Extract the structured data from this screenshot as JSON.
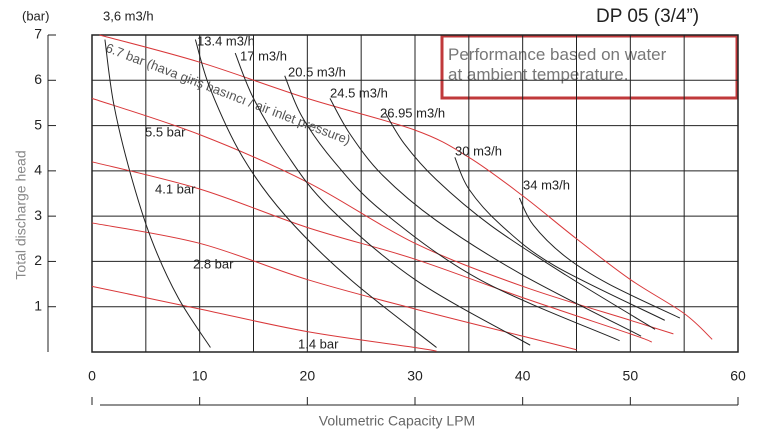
{
  "chart_data": {
    "type": "line",
    "title": "DP 05 (3/4”)",
    "annotation": "Performance based on water at ambient temperature.",
    "y_unit": "(bar)",
    "ylabel": "Total discharge head",
    "xlabel": "Volumetric Capacity LPM",
    "xlim": [
      0,
      60
    ],
    "xticks": [
      0,
      10,
      20,
      30,
      40,
      50,
      60
    ],
    "ylim": [
      0,
      7
    ],
    "yticks": [
      1,
      2,
      3,
      4,
      5,
      6,
      7
    ],
    "xgrid": [
      5,
      10,
      15,
      20,
      25,
      30,
      35,
      40,
      45,
      50,
      55
    ],
    "grid": true,
    "series": [
      {
        "name": "6.7 bar (hava giriş basıncı / air inlet pressure)",
        "color": "#d9383a",
        "x": [
          0.7,
          10,
          20,
          30,
          35,
          40,
          45,
          50,
          55,
          57.6
        ],
        "values": [
          7,
          6.4,
          5.6,
          4.9,
          4.3,
          3.45,
          2.5,
          1.6,
          0.85,
          0.28
        ]
      },
      {
        "name": "5.5 bar",
        "color": "#d9383a",
        "x": [
          0,
          10,
          20,
          30,
          40,
          50,
          54
        ],
        "values": [
          5.6,
          4.8,
          3.75,
          2.4,
          1.45,
          0.7,
          0.4
        ]
      },
      {
        "name": "4.1 bar",
        "color": "#d9383a",
        "x": [
          0,
          10,
          20,
          30,
          40,
          50,
          52
        ],
        "values": [
          4.2,
          3.6,
          2.75,
          2.05,
          1.2,
          0.4,
          0.22
        ]
      },
      {
        "name": "2.8 bar",
        "color": "#d9383a",
        "x": [
          0,
          10,
          20,
          30,
          40,
          45
        ],
        "values": [
          2.85,
          2.4,
          1.6,
          0.95,
          0.35,
          0.05
        ]
      },
      {
        "name": "1.4 bar",
        "color": "#d9383a",
        "x": [
          0,
          10,
          20,
          30,
          32
        ],
        "values": [
          1.45,
          0.95,
          0.45,
          0.1,
          0.02
        ]
      },
      {
        "name": "3,6 m3/h",
        "color": "#222222",
        "x": [
          1.2,
          2,
          3.5,
          5.5,
          8,
          11
        ],
        "values": [
          6.9,
          5.5,
          4,
          2.5,
          1.2,
          0.1
        ]
      },
      {
        "name": "13.4 m3/h",
        "color": "#222222",
        "x": [
          9.6,
          11,
          14,
          18,
          24,
          32
        ],
        "values": [
          6.9,
          5.8,
          4.3,
          3,
          1.6,
          0.1
        ]
      },
      {
        "name": "17 m3/h",
        "color": "#222222",
        "x": [
          13.3,
          15,
          18,
          22,
          30,
          40.7
        ],
        "values": [
          6.6,
          5.6,
          4.4,
          3.2,
          1.6,
          0.15
        ]
      },
      {
        "name": "20.5 m3/h",
        "color": "#222222",
        "x": [
          17.9,
          19.5,
          22.5,
          27,
          36,
          49
        ],
        "values": [
          6.1,
          5.2,
          4.2,
          3.1,
          1.6,
          0.25
        ]
      },
      {
        "name": "24.5 m3/h",
        "color": "#222222",
        "x": [
          22.1,
          24,
          27,
          32,
          40,
          51
        ],
        "values": [
          5.6,
          4.8,
          3.9,
          2.9,
          1.7,
          0.35
        ]
      },
      {
        "name": "26.95 m3/h",
        "color": "#222222",
        "x": [
          27.2,
          29,
          32,
          37,
          44,
          52.3
        ],
        "values": [
          5.3,
          4.6,
          3.8,
          2.8,
          1.7,
          0.5
        ]
      },
      {
        "name": "30 m3/h",
        "color": "#222222",
        "x": [
          33.7,
          35,
          38,
          43,
          53.2
        ],
        "values": [
          4.3,
          3.6,
          2.8,
          1.9,
          0.7
        ]
      },
      {
        "name": "34 m3/h",
        "color": "#222222",
        "x": [
          39.7,
          41,
          44,
          48,
          54.6
        ],
        "values": [
          3.4,
          2.8,
          2.1,
          1.5,
          0.75
        ]
      }
    ]
  }
}
